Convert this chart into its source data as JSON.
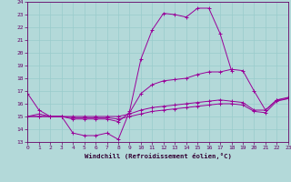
{
  "x": [
    0,
    1,
    2,
    3,
    4,
    5,
    6,
    7,
    8,
    9,
    10,
    11,
    12,
    13,
    14,
    15,
    16,
    17,
    18,
    19,
    20,
    21,
    22,
    23
  ],
  "line1": [
    16.8,
    15.5,
    15.0,
    15.0,
    13.7,
    13.5,
    13.5,
    13.7,
    13.2,
    15.4,
    19.5,
    21.8,
    23.1,
    23.0,
    22.8,
    23.5,
    23.5,
    21.5,
    18.6,
    null,
    null,
    null,
    null,
    null
  ],
  "line2": [
    15.0,
    15.2,
    15.0,
    15.0,
    14.8,
    14.8,
    14.8,
    14.8,
    14.6,
    15.3,
    16.8,
    17.5,
    17.8,
    17.9,
    18.0,
    18.3,
    18.5,
    18.5,
    18.7,
    18.6,
    17.0,
    15.5,
    16.3,
    16.5
  ],
  "line3": [
    15.0,
    15.0,
    15.0,
    15.0,
    15.0,
    15.0,
    15.0,
    15.0,
    15.0,
    15.2,
    15.5,
    15.7,
    15.8,
    15.9,
    16.0,
    16.1,
    16.2,
    16.3,
    16.2,
    16.1,
    15.5,
    15.5,
    16.3,
    16.4
  ],
  "line4": [
    15.0,
    15.0,
    15.0,
    15.0,
    14.9,
    14.9,
    14.9,
    14.9,
    14.8,
    15.0,
    15.2,
    15.4,
    15.5,
    15.6,
    15.7,
    15.8,
    15.9,
    16.0,
    16.0,
    15.9,
    15.4,
    15.3,
    16.2,
    16.4
  ],
  "line_color": "#990099",
  "bg_color": "#b3d9d9",
  "grid_color": "#99cccc",
  "xlabel": "Windchill (Refroidissement éolien,°C)",
  "xlim": [
    0,
    23
  ],
  "ylim": [
    13,
    24
  ],
  "yticks": [
    13,
    14,
    15,
    16,
    17,
    18,
    19,
    20,
    21,
    22,
    23,
    24
  ],
  "xticks": [
    0,
    1,
    2,
    3,
    4,
    5,
    6,
    7,
    8,
    9,
    10,
    11,
    12,
    13,
    14,
    15,
    16,
    17,
    18,
    19,
    20,
    21,
    22,
    23
  ]
}
